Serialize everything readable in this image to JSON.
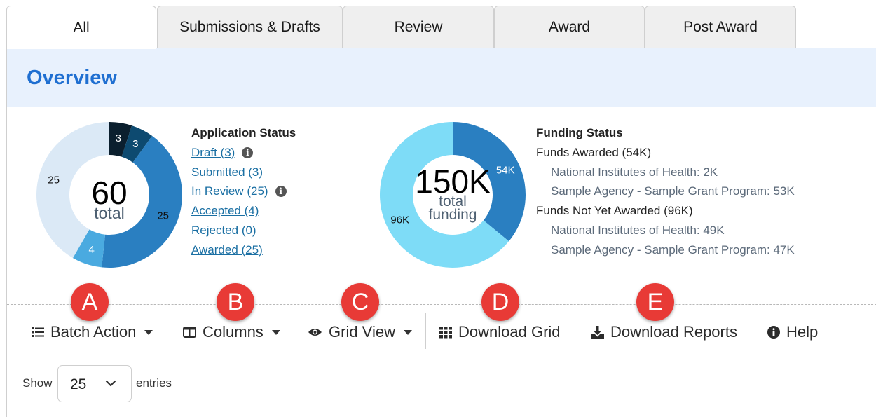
{
  "tabs": [
    {
      "label": "All",
      "active": true
    },
    {
      "label": "Submissions & Drafts",
      "active": false
    },
    {
      "label": "Review",
      "active": false
    },
    {
      "label": "Award",
      "active": false
    },
    {
      "label": "Post Award",
      "active": false
    }
  ],
  "overview": {
    "title": "Overview"
  },
  "application_status": {
    "heading": "Application Status",
    "center_value": "60",
    "center_label": "total",
    "items": [
      {
        "label": "Draft (3)",
        "info": true
      },
      {
        "label": "Submitted (3)",
        "info": false
      },
      {
        "label": "In Review (25)",
        "info": true
      },
      {
        "label": "Accepted (4)",
        "info": false
      },
      {
        "label": "Rejected (0)",
        "info": false
      },
      {
        "label": "Awarded (25)",
        "info": false
      }
    ],
    "slices": [
      {
        "label": "3",
        "value": 3,
        "color": "#0b1f2e",
        "text_color": "#ffffff"
      },
      {
        "label": "3",
        "value": 3,
        "color": "#0d4a70",
        "text_color": "#ffffff"
      },
      {
        "label": "25",
        "value": 25,
        "color": "#2a7fc1",
        "text_color": "#111111"
      },
      {
        "label": "4",
        "value": 4,
        "color": "#4aaae0",
        "text_color": "#ffffff"
      },
      {
        "label": "25",
        "value": 25,
        "color": "#dbe9f6",
        "text_color": "#111111"
      }
    ]
  },
  "funding_status": {
    "heading": "Funding Status",
    "center_value": "150K",
    "center_label_1": "total",
    "center_label_2": "funding",
    "lines": [
      {
        "text": "Funds Awarded (54K)",
        "sub": false
      },
      {
        "text": "National Institutes of Health: 2K",
        "sub": true
      },
      {
        "text": "Sample Agency - Sample Grant Program: 53K",
        "sub": true
      },
      {
        "text": "Funds Not Yet Awarded (96K)",
        "sub": false
      },
      {
        "text": "National Institutes of Health: 49K",
        "sub": true
      },
      {
        "text": "Sample Agency - Sample Grant Program: 47K",
        "sub": true
      }
    ],
    "slices": [
      {
        "label": "54K",
        "value": 54,
        "color": "#2a7fc1",
        "text_color": "#ffffff"
      },
      {
        "label": "96K",
        "value": 96,
        "color": "#7edcf7",
        "text_color": "#111111"
      }
    ]
  },
  "markers": [
    "A",
    "B",
    "C",
    "D",
    "E"
  ],
  "toolbar": {
    "batch_action": "Batch Action",
    "columns": "Columns",
    "grid_view": "Grid View",
    "download_grid": "Download Grid",
    "download_reports": "Download Reports",
    "help": "Help"
  },
  "entries": {
    "show_label": "Show",
    "value": "25",
    "suffix": "entries"
  },
  "colors": {
    "accent": "#1f6fd1",
    "marker": "#e83a36",
    "link": "#1a6fa3",
    "overview_bg": "#e8f1fd"
  }
}
